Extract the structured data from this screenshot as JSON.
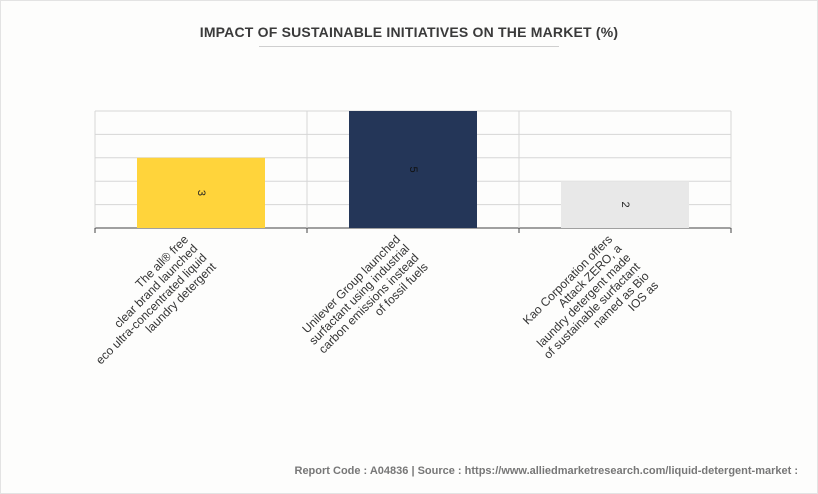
{
  "chart_data": {
    "type": "bar",
    "title": "IMPACT OF SUSTAINABLE INITIATIVES ON THE MARKET (%)",
    "categories": [
      [
        "The all® free",
        "clear brand launched",
        "eco ultra-concentrated liquid",
        "laundry detergent"
      ],
      [
        "Unilever Group launched",
        "surfactant using industrial",
        "carbon emissions instead",
        "of fossil fuels"
      ],
      [
        "Kao Corporation offers",
        "Attack ZERO, a",
        "laundry detergent made",
        "of sustainable surfactant",
        "named as Bio",
        "IOS as"
      ]
    ],
    "values": [
      3,
      5,
      2
    ],
    "data_labels": [
      "3",
      "5",
      "2"
    ],
    "colors": [
      "#ffd43b",
      "#243658",
      "#e8e8e8"
    ],
    "ylim": [
      0,
      5
    ],
    "grid": true,
    "xlabel": "",
    "ylabel": ""
  },
  "footer": {
    "text": "Report Code : A04836  |  Source : https://www.alliedmarketresearch.com/liquid-detergent-market :"
  }
}
